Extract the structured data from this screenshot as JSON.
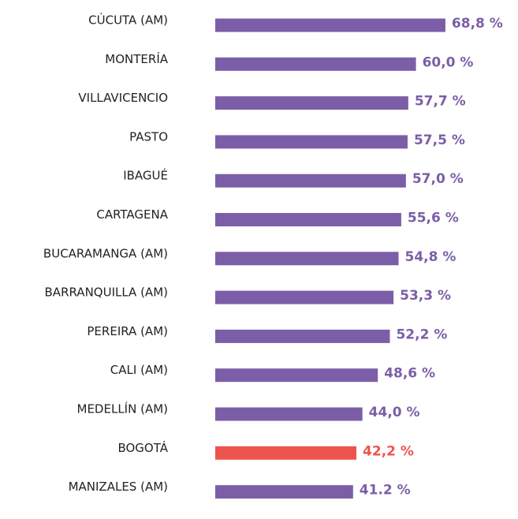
{
  "chart_data": {
    "type": "hbar",
    "categories": [
      "CÚCUTA (AM)",
      "MONTERÍA",
      "VILLAVICENCIO",
      "PASTO",
      "IBAGUÉ",
      "CARTAGENA",
      "BUCARAMANGA (AM)",
      "BARRANQUILLA (AM)",
      "PEREIRA (AM)",
      "CALI (AM)",
      "MEDELLÍN (AM)",
      "BOGOTÁ",
      "MANIZALES (AM)"
    ],
    "values": [
      68.8,
      60.0,
      57.7,
      57.5,
      57.0,
      55.6,
      54.8,
      53.3,
      52.2,
      48.6,
      44.0,
      42.2,
      41.2
    ],
    "value_labels": [
      "68,8 %",
      "60,0 %",
      "57,7 %",
      "57,5 %",
      "57,0 %",
      "55,6 %",
      "54,8 %",
      "53,3 %",
      "52,2 %",
      "48,6 %",
      "44,0 %",
      "42,2 %",
      "41.2 %"
    ],
    "colors": [
      "#7b5ea7",
      "#7b5ea7",
      "#7b5ea7",
      "#7b5ea7",
      "#7b5ea7",
      "#7b5ea7",
      "#7b5ea7",
      "#7b5ea7",
      "#7b5ea7",
      "#7b5ea7",
      "#7b5ea7",
      "#ef5350",
      "#7b5ea7"
    ],
    "xlim": [
      0,
      70
    ]
  }
}
